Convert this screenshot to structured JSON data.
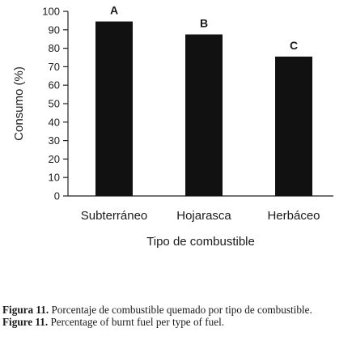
{
  "chart_data": {
    "type": "bar",
    "categories": [
      "Subterráneo",
      "Hojarasca",
      "Herbáceo"
    ],
    "values": [
      94.5,
      87.5,
      75.5
    ],
    "bar_letters": [
      "A",
      "B",
      "C"
    ],
    "xlabel": "Tipo de combustible",
    "ylabel": "Consumo (%)",
    "ylim": [
      0,
      100
    ],
    "yticks": [
      0,
      10,
      20,
      30,
      40,
      50,
      60,
      70,
      80,
      90,
      100
    ],
    "grid": false,
    "bar_color": "#111111"
  },
  "captions": [
    {
      "label": "Figura 11.",
      "text": "Porcentaje de combustible quemado por tipo de combustible."
    },
    {
      "label": "Figure 11.",
      "text": "Percentage of burnt fuel per type of fuel."
    }
  ]
}
